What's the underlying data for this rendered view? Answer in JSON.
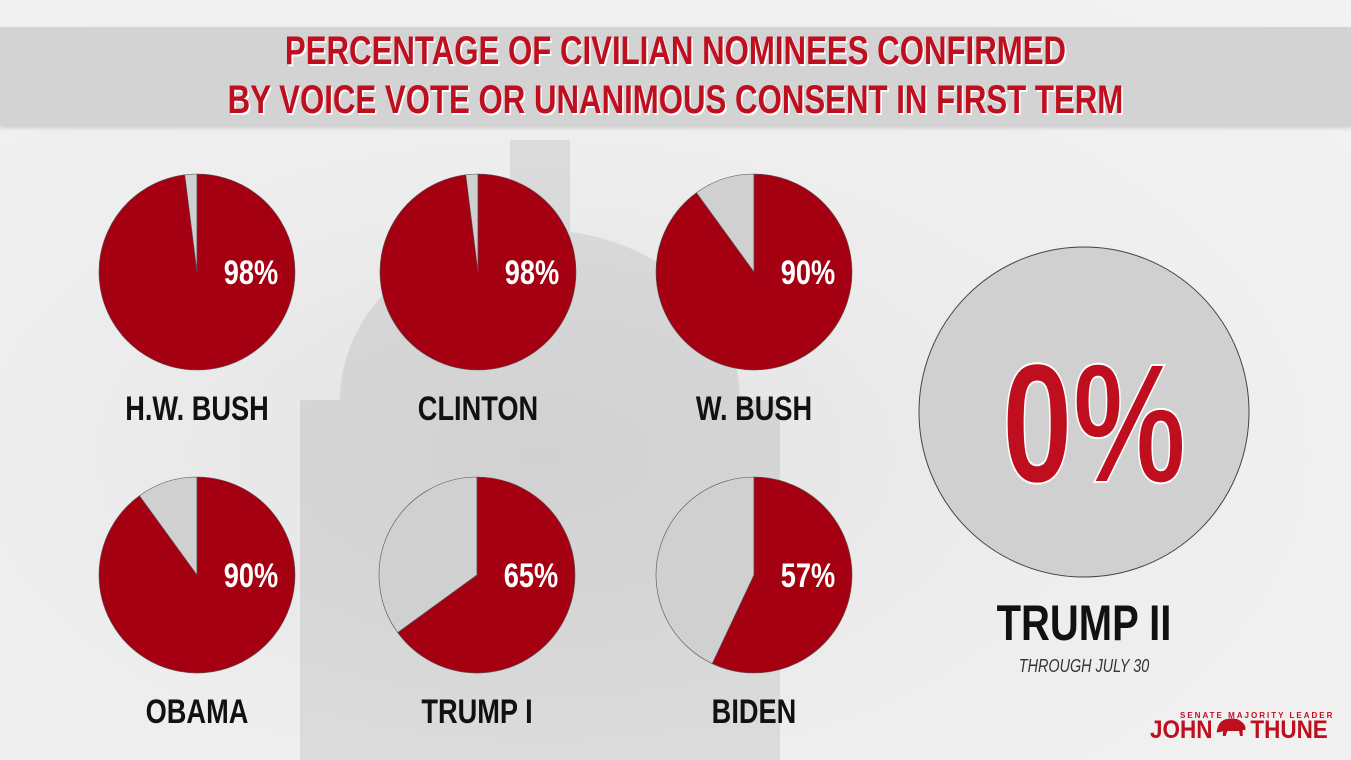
{
  "title": {
    "line1": "PERCENTAGE OF CIVILIAN NOMINEES CONFIRMED",
    "line2": "BY VOICE VOTE OR UNANIMOUS CONSENT IN FIRST TERM"
  },
  "chart_data": {
    "type": "pie",
    "title": "Percentage of Civilian Nominees Confirmed by Voice Vote or Unanimous Consent in First Term",
    "colors": {
      "confirmed": "#a50012",
      "other": "#d0d0d0"
    },
    "pies": [
      {
        "name": "H.W. BUSH",
        "value": 98,
        "label": "98%"
      },
      {
        "name": "CLINTON",
        "value": 98,
        "label": "98%"
      },
      {
        "name": "W. BUSH",
        "value": 90,
        "label": "90%"
      },
      {
        "name": "OBAMA",
        "value": 90,
        "label": "90%"
      },
      {
        "name": "TRUMP I",
        "value": 65,
        "label": "65%"
      },
      {
        "name": "BIDEN",
        "value": 57,
        "label": "57%"
      }
    ],
    "highlight": {
      "name": "TRUMP II",
      "value": 0,
      "label": "0%",
      "note": "THROUGH JULY 30"
    }
  },
  "logo": {
    "top": "SENATE MAJORITY LEADER",
    "left": "JOHN",
    "right": "THUNE"
  }
}
